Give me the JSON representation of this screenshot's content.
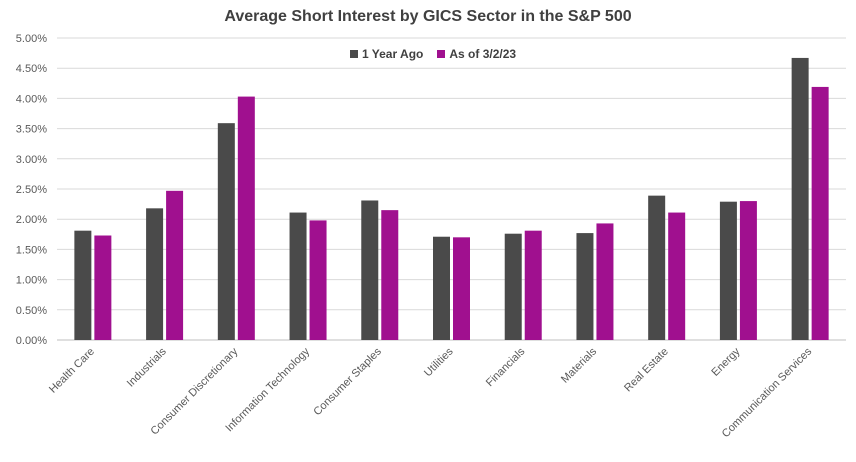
{
  "chart_data": {
    "type": "bar",
    "title": "Average Short Interest by GICS Sector in the S&P 500",
    "xlabel": "",
    "ylabel": "",
    "ylim": [
      0,
      5.0
    ],
    "y_ticks": [
      "0.00%",
      "0.50%",
      "1.00%",
      "1.50%",
      "2.00%",
      "2.50%",
      "3.00%",
      "3.50%",
      "4.00%",
      "4.50%",
      "5.00%"
    ],
    "grid": true,
    "legend_position": "top-center",
    "categories": [
      "Health Care",
      "Industrials",
      "Consumer Discretionary",
      "Information Technology",
      "Consumer Staples",
      "Utilities",
      "Financials",
      "Materials",
      "Real Estate",
      "Energy",
      "Communication Services"
    ],
    "series": [
      {
        "name": "1 Year Ago",
        "color": "#4a4a4a",
        "values": [
          1.81,
          2.18,
          3.59,
          2.11,
          2.31,
          1.71,
          1.76,
          1.77,
          2.39,
          2.29,
          4.67
        ]
      },
      {
        "name": "As of 3/2/23",
        "color": "#a0108f",
        "values": [
          1.73,
          2.47,
          4.03,
          1.98,
          2.15,
          1.7,
          1.81,
          1.93,
          2.11,
          2.3,
          4.19
        ]
      }
    ]
  }
}
